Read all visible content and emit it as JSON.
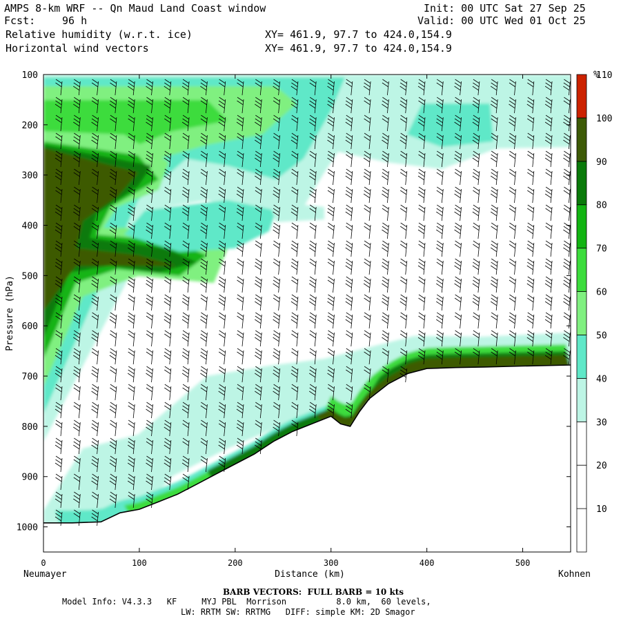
{
  "header": {
    "title": "AMPS 8-km WRF -- Qn Maud Land Coast window",
    "init": "Init: 00 UTC Sat 27 Sep 25",
    "fcst_label": "Fcst:",
    "fcst_value": "96 h",
    "valid": "Valid: 00 UTC Wed 01 Oct 25",
    "field1": "Relative humidity (w.r.t. ice)",
    "field1_xy": "XY= 461.9, 97.7 to 424.0,154.9",
    "field2": "Horizontal wind vectors",
    "field2_xy": "XY= 461.9, 97.7 to 424.0,154.9"
  },
  "footer": {
    "barb_note": "BARB VECTORS:  FULL BARB = 10 kts",
    "model_info": "Model Info: V4.3.3   KF     MYJ PBL  Morrison          8.0 km,  60 levels,",
    "physics": "LW: RRTM SW: RRTMG   DIFF: simple KM: 2D Smagor"
  },
  "colors": {
    "bins": [
      "#ffffff",
      "#ffffff",
      "#ffffff",
      "#bdf5e5",
      "#5fe8c8",
      "#80f080",
      "#3cdc3c",
      "#12b412",
      "#0a7a0a",
      "#3d5a06",
      "#cc2200"
    ],
    "bin_edges": [
      0,
      10,
      20,
      30,
      40,
      50,
      60,
      70,
      80,
      90,
      100,
      110
    ],
    "terrain_line": "#000000",
    "barbs": "#000000"
  },
  "chart_data": {
    "type": "heatmap",
    "title": "Relative humidity (w.r.t. ice)",
    "xlabel": "Distance (km)",
    "ylabel": "Pressure (hPa)",
    "x_start_label": "Neumayer",
    "x_end_label": "Kohnen",
    "xlim": [
      0,
      550
    ],
    "ylim": [
      1050,
      100
    ],
    "x_ticks": [
      0,
      100,
      200,
      300,
      400,
      500
    ],
    "y_ticks": [
      100,
      200,
      300,
      400,
      500,
      600,
      700,
      800,
      900,
      1000
    ],
    "colorbar": {
      "unit": "%",
      "ticks": [
        10,
        20,
        30,
        40,
        50,
        60,
        70,
        80,
        90,
        100,
        110
      ]
    },
    "terrain_surface_pressure": {
      "x": [
        0,
        30,
        60,
        80,
        100,
        120,
        140,
        160,
        180,
        200,
        220,
        240,
        260,
        280,
        300,
        310,
        320,
        330,
        340,
        360,
        380,
        400,
        430,
        460,
        500,
        550
      ],
      "p": [
        992,
        992,
        990,
        972,
        965,
        950,
        935,
        915,
        895,
        875,
        855,
        830,
        810,
        795,
        780,
        795,
        800,
        770,
        745,
        715,
        695,
        685,
        683,
        682,
        680,
        678
      ]
    },
    "humidity_features": [
      {
        "name": "upper moist layer",
        "x": [
          0,
          310
        ],
        "p": [
          120,
          250
        ],
        "max_percent": 80
      },
      {
        "name": "moist tongue",
        "x": [
          0,
          150
        ],
        "p": [
          220,
          580
        ],
        "max_percent": 110
      },
      {
        "name": "surface moist layer",
        "x": [
          0,
          550
        ],
        "p": [
          640,
          990
        ],
        "max_percent": 110
      },
      {
        "name": "upper patch",
        "x": [
          420,
          470
        ],
        "p": [
          160,
          220
        ],
        "max_percent": 50
      }
    ],
    "wind_barbs": "full barb = 10 kts"
  }
}
